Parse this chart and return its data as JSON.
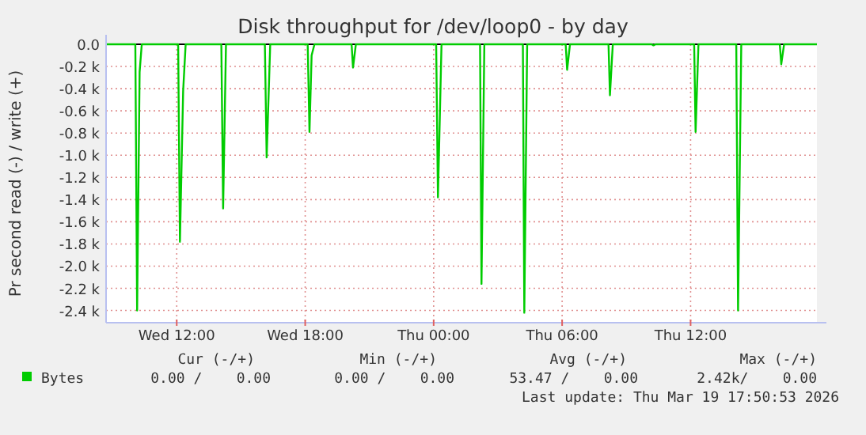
{
  "chart_data": {
    "type": "line",
    "title": "Disk throughput for /dev/loop0 - by day",
    "ylabel": "Pr second read (-) / write (+)",
    "xlim": [
      "2026-03-18T08:42",
      "2026-03-19T17:54"
    ],
    "ylim": [
      -2510,
      0
    ],
    "xticks": [
      {
        "value": "2026-03-18T12:00",
        "label": "Wed 12:00"
      },
      {
        "value": "2026-03-18T18:00",
        "label": "Wed 18:00"
      },
      {
        "value": "2026-03-19T00:00",
        "label": "Thu 00:00"
      },
      {
        "value": "2026-03-19T06:00",
        "label": "Thu 06:00"
      },
      {
        "value": "2026-03-19T12:00",
        "label": "Thu 12:00"
      }
    ],
    "yticks": [
      {
        "value": 0,
        "label": "0.0"
      },
      {
        "value": -200,
        "label": "-0.2 k"
      },
      {
        "value": -400,
        "label": "-0.4 k"
      },
      {
        "value": -600,
        "label": "-0.6 k"
      },
      {
        "value": -800,
        "label": "-0.8 k"
      },
      {
        "value": -1000,
        "label": "-1.0 k"
      },
      {
        "value": -1200,
        "label": "-1.2 k"
      },
      {
        "value": -1400,
        "label": "-1.4 k"
      },
      {
        "value": -1600,
        "label": "-1.6 k"
      },
      {
        "value": -1800,
        "label": "-1.8 k"
      },
      {
        "value": -2000,
        "label": "-2.0 k"
      },
      {
        "value": -2200,
        "label": "-2.2 k"
      },
      {
        "value": -2400,
        "label": "-2.4 k"
      }
    ],
    "grid": true,
    "legend": "bottom",
    "marker": "none",
    "line_style": "solid",
    "series": [
      {
        "name": "Bytes",
        "color": "#00cc00",
        "x": [
          "2026-03-18T08:42",
          "2026-03-18T10:04",
          "2026-03-18T10:09",
          "2026-03-18T10:16",
          "2026-03-18T10:22",
          "2026-03-18T12:04",
          "2026-03-18T12:09",
          "2026-03-18T12:18",
          "2026-03-18T12:25",
          "2026-03-18T14:05",
          "2026-03-18T14:10",
          "2026-03-18T14:18",
          "2026-03-18T16:07",
          "2026-03-18T16:12",
          "2026-03-18T16:22",
          "2026-03-18T18:07",
          "2026-03-18T18:12",
          "2026-03-18T18:18",
          "2026-03-18T18:26",
          "2026-03-18T20:10",
          "2026-03-18T20:14",
          "2026-03-18T20:22",
          "2026-03-19T00:07",
          "2026-03-19T00:12",
          "2026-03-19T00:22",
          "2026-03-19T02:10",
          "2026-03-19T02:14",
          "2026-03-19T02:22",
          "2026-03-19T04:10",
          "2026-03-19T04:14",
          "2026-03-19T04:22",
          "2026-03-19T06:10",
          "2026-03-19T06:14",
          "2026-03-19T06:22",
          "2026-03-19T08:10",
          "2026-03-19T08:14",
          "2026-03-19T08:22",
          "2026-03-19T10:11",
          "2026-03-19T10:16",
          "2026-03-19T10:22",
          "2026-03-19T12:10",
          "2026-03-19T12:14",
          "2026-03-19T12:22",
          "2026-03-19T14:08",
          "2026-03-19T14:13",
          "2026-03-19T14:22",
          "2026-03-19T16:10",
          "2026-03-19T16:14",
          "2026-03-19T16:22",
          "2026-03-19T17:54"
        ],
        "values": [
          0,
          0,
          -2400,
          -250,
          0,
          0,
          -1780,
          -420,
          0,
          0,
          -1480,
          0,
          0,
          -1020,
          0,
          0,
          -790,
          -100,
          0,
          0,
          -210,
          0,
          0,
          -1380,
          0,
          0,
          -2160,
          0,
          0,
          -2420,
          0,
          0,
          -230,
          0,
          0,
          -460,
          0,
          0,
          -10,
          0,
          0,
          -790,
          0,
          0,
          -2400,
          0,
          0,
          -180,
          0,
          0
        ]
      }
    ],
    "annotations": [
      "Cur (-/+)",
      "Min (-/+)",
      "Avg (-/+)",
      "Max (-/+)",
      "0.00 /    0.00",
      "0.00 /    0.00",
      "53.47 /    0.00",
      "2.42k/    0.00",
      "Last update: Thu Mar 19 17:50:53 2026"
    ]
  }
}
